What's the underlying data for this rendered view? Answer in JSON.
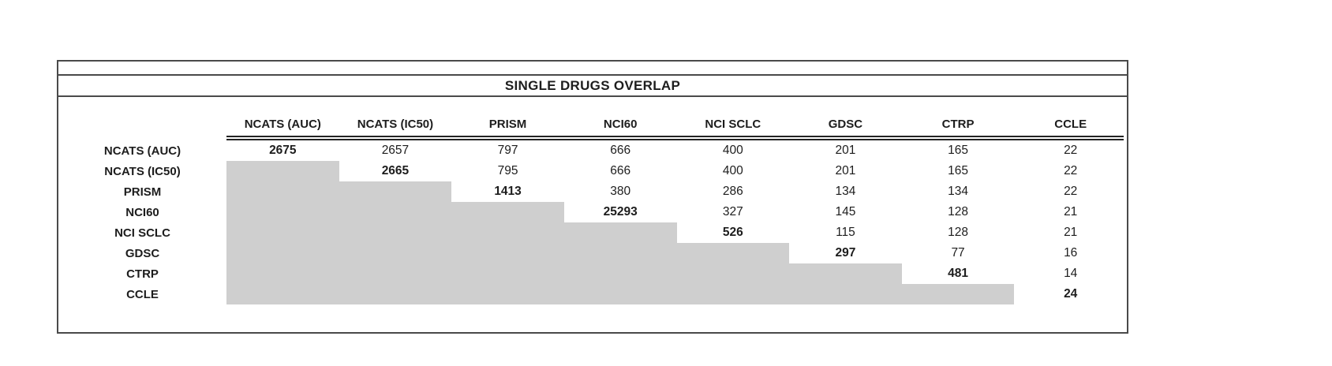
{
  "title": "SINGLE DRUGS OVERLAP",
  "columns": [
    "NCATS (AUC)",
    "NCATS (IC50)",
    "PRISM",
    "NCI60",
    "NCI SCLC",
    "GDSC",
    "CTRP",
    "CCLE"
  ],
  "rows": [
    {
      "label": "NCATS (AUC)",
      "cells": [
        {
          "v": "2675",
          "b": 1
        },
        {
          "v": "2657"
        },
        {
          "v": "797"
        },
        {
          "v": "666"
        },
        {
          "v": "400"
        },
        {
          "v": "201"
        },
        {
          "v": "165"
        },
        {
          "v": "22"
        }
      ]
    },
    {
      "label": "NCATS (IC50)",
      "cells": [
        {
          "s": 1
        },
        {
          "v": "2665",
          "b": 1
        },
        {
          "v": "795"
        },
        {
          "v": "666"
        },
        {
          "v": "400"
        },
        {
          "v": "201"
        },
        {
          "v": "165"
        },
        {
          "v": "22"
        }
      ]
    },
    {
      "label": "PRISM",
      "cells": [
        {
          "s": 1
        },
        {
          "s": 1
        },
        {
          "v": "1413",
          "b": 1
        },
        {
          "v": "380"
        },
        {
          "v": "286"
        },
        {
          "v": "134"
        },
        {
          "v": "134"
        },
        {
          "v": "22"
        }
      ]
    },
    {
      "label": "NCI60",
      "cells": [
        {
          "s": 1
        },
        {
          "s": 1
        },
        {
          "s": 1
        },
        {
          "v": "25293",
          "b": 1
        },
        {
          "v": "327"
        },
        {
          "v": "145"
        },
        {
          "v": "128"
        },
        {
          "v": "21"
        }
      ]
    },
    {
      "label": "NCI SCLC",
      "cells": [
        {
          "s": 1
        },
        {
          "s": 1
        },
        {
          "s": 1
        },
        {
          "s": 1
        },
        {
          "v": "526",
          "b": 1
        },
        {
          "v": "115"
        },
        {
          "v": "128"
        },
        {
          "v": "21"
        }
      ]
    },
    {
      "label": "GDSC",
      "cells": [
        {
          "s": 1
        },
        {
          "s": 1
        },
        {
          "s": 1
        },
        {
          "s": 1
        },
        {
          "s": 1
        },
        {
          "v": "297",
          "b": 1
        },
        {
          "v": "77"
        },
        {
          "v": "16"
        }
      ]
    },
    {
      "label": "CTRP",
      "cells": [
        {
          "s": 1
        },
        {
          "s": 1
        },
        {
          "s": 1
        },
        {
          "s": 1
        },
        {
          "s": 1
        },
        {
          "s": 1
        },
        {
          "v": "481",
          "b": 1
        },
        {
          "v": "14"
        }
      ]
    },
    {
      "label": "CCLE",
      "cells": [
        {
          "s": 1
        },
        {
          "s": 1
        },
        {
          "s": 1
        },
        {
          "s": 1
        },
        {
          "s": 1
        },
        {
          "s": 1
        },
        {
          "s": 1
        },
        {
          "v": "24",
          "b": 1
        }
      ]
    }
  ],
  "colors": {
    "shaded_cell": "#cfcfcf",
    "border": "#4a4a4a",
    "text": "#1d1d1d"
  },
  "chart_data": {
    "type": "table",
    "title": "SINGLE DRUGS OVERLAP",
    "row_labels": [
      "NCATS (AUC)",
      "NCATS (IC50)",
      "PRISM",
      "NCI60",
      "NCI SCLC",
      "GDSC",
      "CTRP",
      "CCLE"
    ],
    "col_labels": [
      "NCATS (AUC)",
      "NCATS (IC50)",
      "PRISM",
      "NCI60",
      "NCI SCLC",
      "GDSC",
      "CTRP",
      "CCLE"
    ],
    "matrix": [
      [
        2675,
        2657,
        797,
        666,
        400,
        201,
        165,
        22
      ],
      [
        null,
        2665,
        795,
        666,
        400,
        201,
        165,
        22
      ],
      [
        null,
        null,
        1413,
        380,
        286,
        134,
        134,
        22
      ],
      [
        null,
        null,
        null,
        25293,
        327,
        145,
        128,
        21
      ],
      [
        null,
        null,
        null,
        null,
        526,
        115,
        128,
        21
      ],
      [
        null,
        null,
        null,
        null,
        null,
        297,
        77,
        16
      ],
      [
        null,
        null,
        null,
        null,
        null,
        null,
        481,
        14
      ],
      [
        null,
        null,
        null,
        null,
        null,
        null,
        null,
        24
      ]
    ],
    "diagonal_bold": true,
    "shaded_region": "lower-triangle",
    "grid": false,
    "layout": "upper-triangular overlap matrix; lower triangle filled gray"
  }
}
